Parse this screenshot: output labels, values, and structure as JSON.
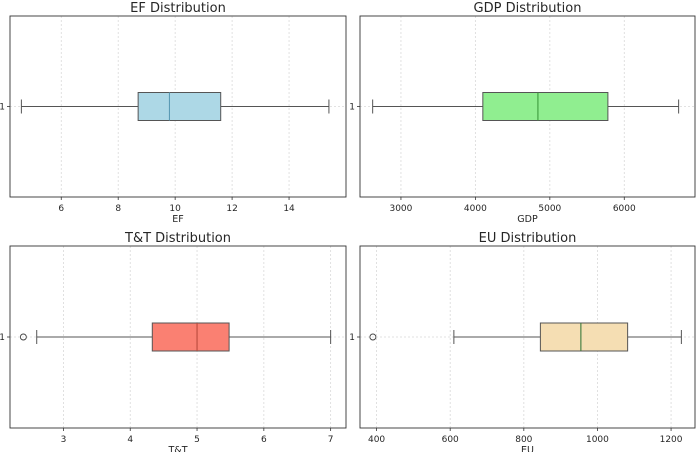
{
  "chart_data": [
    {
      "type": "boxplot",
      "title": "EF Distribution",
      "xlabel": "EF",
      "ytick": "1",
      "xlim": [
        4.2,
        16.0
      ],
      "xticks": [
        6,
        8,
        10,
        12,
        14
      ],
      "grid": true,
      "orientation": "horizontal",
      "color": "#add8e6",
      "median_color": "#5b9bb5",
      "box": {
        "whisker_low": 4.6,
        "q1": 8.7,
        "median": 9.8,
        "q3": 11.6,
        "whisker_high": 15.4
      },
      "outliers": []
    },
    {
      "type": "boxplot",
      "title": "GDP Distribution",
      "xlabel": "GDP",
      "ytick": "1",
      "xlim": [
        2450,
        6950
      ],
      "xticks": [
        3000,
        4000,
        5000,
        6000
      ],
      "grid": true,
      "orientation": "horizontal",
      "color": "#90ee90",
      "median_color": "#3c9a3c",
      "box": {
        "whisker_low": 2620,
        "q1": 4100,
        "median": 4840,
        "q3": 5780,
        "whisker_high": 6730
      },
      "outliers": []
    },
    {
      "type": "boxplot",
      "title": "T&T Distribution",
      "xlabel": "T&T",
      "ytick": "1",
      "xlim": [
        2.2,
        7.23
      ],
      "xticks": [
        3,
        4,
        5,
        6,
        7
      ],
      "grid": true,
      "orientation": "horizontal",
      "color": "#fa8072",
      "median_color": "#b84a3c",
      "box": {
        "whisker_low": 2.6,
        "q1": 4.33,
        "median": 5.0,
        "q3": 5.48,
        "whisker_high": 7.0
      },
      "outliers": [
        2.4
      ]
    },
    {
      "type": "boxplot",
      "title": "EU Distribution",
      "xlabel": "EU",
      "ytick": "1",
      "xlim": [
        355,
        1265
      ],
      "xticks": [
        400,
        600,
        800,
        1000,
        1200
      ],
      "grid": true,
      "orientation": "horizontal",
      "color": "#f5deb3",
      "median_color": "#3a7a3a",
      "box": {
        "whisker_low": 610,
        "q1": 845,
        "median": 955,
        "q3": 1082,
        "whisker_high": 1228
      },
      "outliers": [
        390
      ]
    }
  ]
}
